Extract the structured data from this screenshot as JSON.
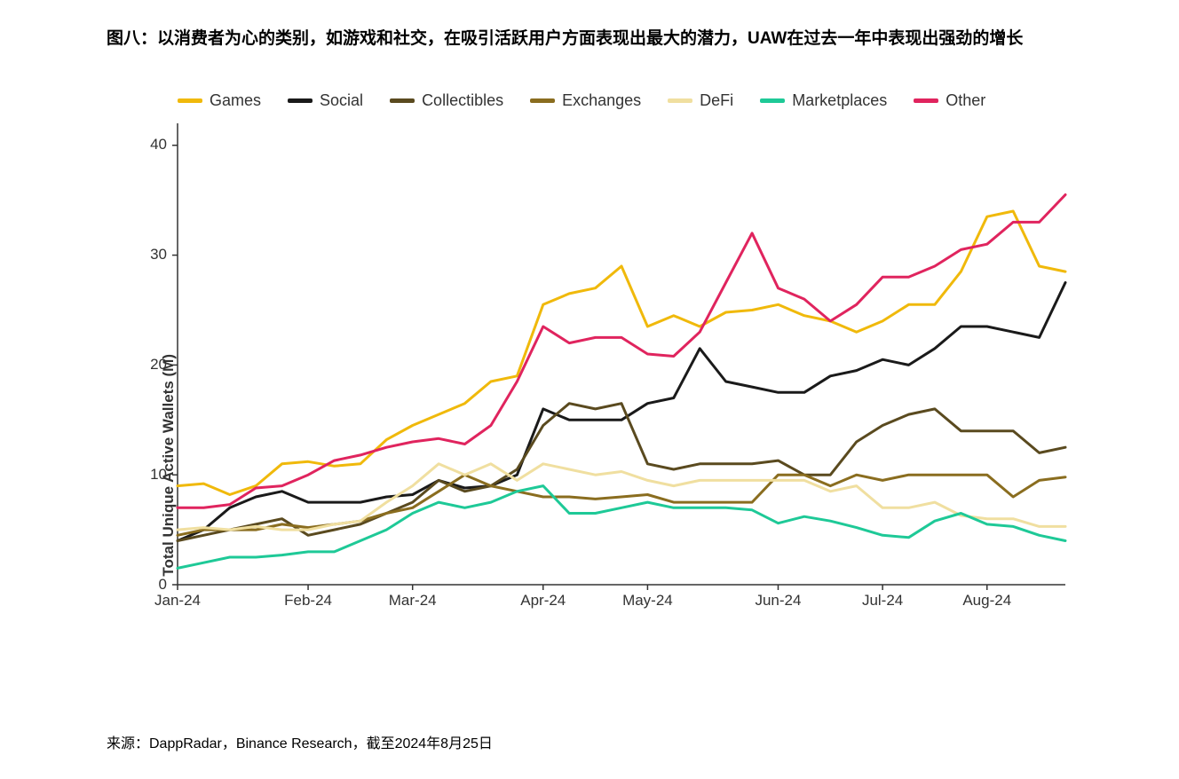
{
  "title": "图八：以消费者为心的类别，如游戏和社交，在吸引活跃用户方面表现出最大的潜力，UAW在过去一年中表现出强劲的增长",
  "source": "来源：DappRadar，Binance Research，截至2024年8月25日",
  "chart": {
    "type": "line",
    "background_color": "#ffffff",
    "axis_color": "#333333",
    "axis_width": 1.5,
    "tick_length": 6,
    "ylabel": "Total Unique Active Wallets (M)",
    "ylabel_fontsize": 17,
    "tick_fontsize": 17,
    "legend_fontsize": 18,
    "line_width": 3,
    "ylim": [
      0,
      42
    ],
    "yticks": [
      0,
      10,
      20,
      30,
      40
    ],
    "xtick_labels": [
      "Jan-24",
      "Feb-24",
      "Mar-24",
      "Apr-24",
      "May-24",
      "Jun-24",
      "Jul-24",
      "Aug-24"
    ],
    "xtick_positions": [
      0,
      5,
      9,
      14,
      18,
      23,
      27,
      31
    ],
    "n_points": 35,
    "series": [
      {
        "name": "Games",
        "color": "#f0b90b",
        "values": [
          9.0,
          9.2,
          8.2,
          9.0,
          11.0,
          11.2,
          10.8,
          11.0,
          13.2,
          14.5,
          15.5,
          16.5,
          18.5,
          19.0,
          25.5,
          26.5,
          27.0,
          29.0,
          23.5,
          24.5,
          23.5,
          24.8,
          25.0,
          25.5,
          24.5,
          24.0,
          23.0,
          24.0,
          25.5,
          25.5,
          28.5,
          33.5,
          34.0,
          29.0,
          28.5
        ]
      },
      {
        "name": "Social",
        "color": "#1a1a1a",
        "values": [
          4.0,
          5.0,
          7.0,
          8.0,
          8.5,
          7.5,
          7.5,
          7.5,
          8.0,
          8.2,
          9.5,
          8.8,
          9.0,
          10.0,
          16.0,
          15.0,
          15.0,
          15.0,
          16.5,
          17.0,
          21.5,
          18.5,
          18.0,
          17.5,
          17.5,
          19.0,
          19.5,
          20.5,
          20.0,
          21.5,
          23.5,
          23.5,
          23.0,
          22.5,
          27.5
        ]
      },
      {
        "name": "Collectibles",
        "color": "#5a4a1f",
        "values": [
          4.0,
          4.5,
          5.0,
          5.5,
          6.0,
          4.5,
          5.0,
          5.5,
          6.5,
          7.5,
          9.5,
          8.5,
          9.0,
          10.5,
          14.5,
          16.5,
          16.0,
          16.5,
          11.0,
          10.5,
          11.0,
          11.0,
          11.0,
          11.3,
          10.0,
          10.0,
          13.0,
          14.5,
          15.5,
          16.0,
          14.0,
          14.0,
          14.0,
          12.0,
          12.5
        ]
      },
      {
        "name": "Exchanges",
        "color": "#8a6d1f",
        "values": [
          4.5,
          5.0,
          5.0,
          5.0,
          5.5,
          5.2,
          5.5,
          5.8,
          6.5,
          7.0,
          8.5,
          10.0,
          9.0,
          8.5,
          8.0,
          8.0,
          7.8,
          8.0,
          8.2,
          7.5,
          7.5,
          7.5,
          7.5,
          10.0,
          10.0,
          9.0,
          10.0,
          9.5,
          10.0,
          10.0,
          10.0,
          10.0,
          8.0,
          9.5,
          9.8
        ]
      },
      {
        "name": "DeFi",
        "color": "#f0dfa0",
        "values": [
          5.0,
          5.2,
          5.0,
          5.3,
          5.0,
          5.0,
          5.5,
          5.8,
          7.5,
          9.0,
          11.0,
          10.0,
          11.0,
          9.5,
          11.0,
          10.5,
          10.0,
          10.3,
          9.5,
          9.0,
          9.5,
          9.5,
          9.5,
          9.5,
          9.5,
          8.5,
          9.0,
          7.0,
          7.0,
          7.5,
          6.3,
          6.0,
          6.0,
          5.3,
          5.3
        ]
      },
      {
        "name": "Marketplaces",
        "color": "#1ec997",
        "values": [
          1.5,
          2.0,
          2.5,
          2.5,
          2.7,
          3.0,
          3.0,
          4.0,
          5.0,
          6.5,
          7.5,
          7.0,
          7.5,
          8.5,
          9.0,
          6.5,
          6.5,
          7.0,
          7.5,
          7.0,
          7.0,
          7.0,
          6.8,
          5.6,
          6.2,
          5.8,
          5.2,
          4.5,
          4.3,
          5.8,
          6.5,
          5.5,
          5.3,
          4.5,
          4.0
        ]
      },
      {
        "name": "Other",
        "color": "#e0245e",
        "values": [
          7.0,
          7.0,
          7.3,
          8.8,
          9.0,
          10.0,
          11.3,
          11.8,
          12.5,
          13.0,
          13.3,
          12.8,
          14.5,
          18.5,
          23.5,
          22.0,
          22.5,
          22.5,
          21.0,
          20.8,
          23.0,
          27.5,
          32.0,
          27.0,
          26.0,
          24.0,
          25.5,
          28.0,
          28.0,
          29.0,
          30.5,
          31.0,
          33.0,
          33.0,
          35.5
        ]
      }
    ]
  }
}
